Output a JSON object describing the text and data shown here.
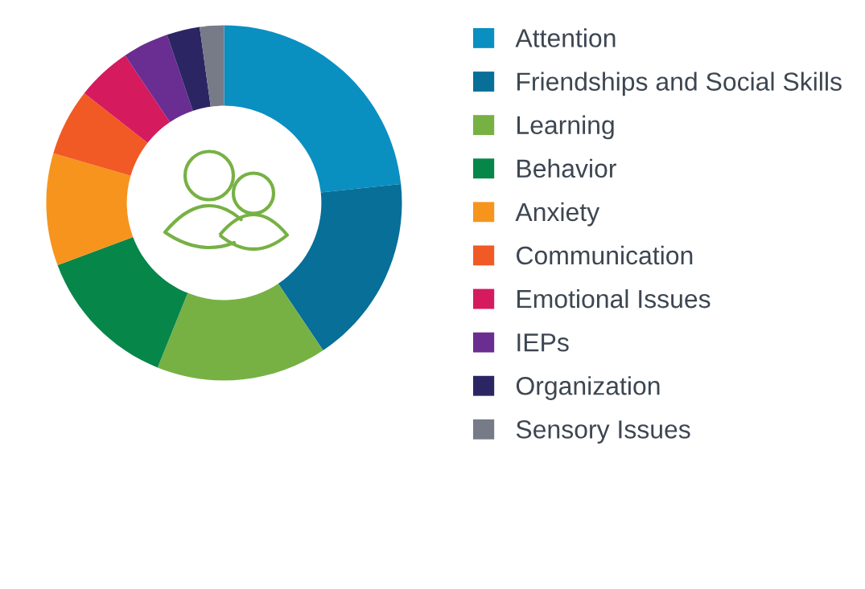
{
  "chart_data": {
    "type": "donut",
    "categories": [
      "Attention",
      "Friendships and Social Skills",
      "Learning",
      "Behavior",
      "Anxiety",
      "Communication",
      "Emotional Issues",
      "IEPs",
      "Organization",
      "Sensory Issues"
    ],
    "values": [
      23.3,
      17.3,
      15.5,
      13.2,
      10.2,
      6.1,
      5.0,
      4.2,
      3.0,
      2.2
    ],
    "colors": [
      "#0a8fc1",
      "#076f98",
      "#77b144",
      "#07864a",
      "#f7941e",
      "#f15a25",
      "#d51a5e",
      "#6a2d91",
      "#2b2663",
      "#777a87"
    ],
    "legend": "right"
  }
}
